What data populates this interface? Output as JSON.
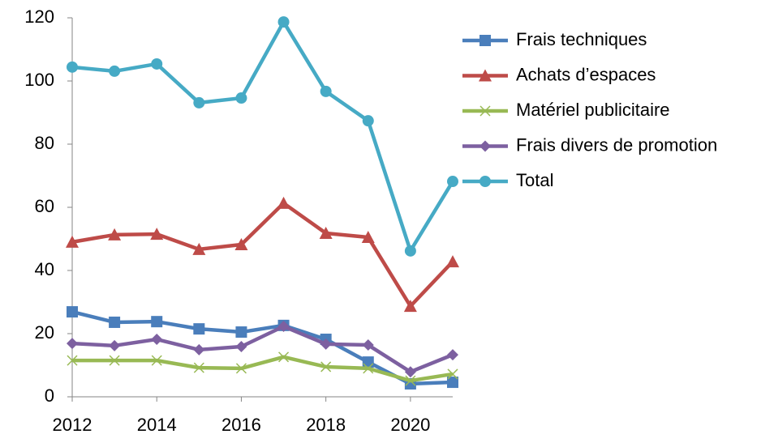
{
  "chart_data": {
    "type": "line",
    "x": [
      2012,
      2013,
      2014,
      2015,
      2016,
      2017,
      2018,
      2019,
      2020,
      2021
    ],
    "xlim": [
      2012,
      2021
    ],
    "xticks": [
      2012,
      2014,
      2016,
      2018,
      2020
    ],
    "ylim": [
      0,
      120
    ],
    "yticks": [
      0,
      20,
      40,
      60,
      80,
      100,
      120
    ],
    "legend": "right",
    "series": [
      {
        "name": "Frais techniques",
        "color": "#4a7ebb",
        "marker": "square",
        "values": [
          26.9,
          23.6,
          23.8,
          21.5,
          20.5,
          22.6,
          18.2,
          11,
          4.1,
          4.6
        ]
      },
      {
        "name": "Achats d’espaces",
        "color": "#be4b48",
        "marker": "triangle",
        "values": [
          49,
          51.3,
          51.5,
          46.7,
          48.2,
          61.3,
          51.8,
          50.5,
          28.7,
          42.8
        ]
      },
      {
        "name": "Matériel publicitaire",
        "color": "#98b954",
        "marker": "x",
        "values": [
          11.5,
          11.5,
          11.5,
          9.2,
          9,
          12.6,
          9.5,
          9,
          5.1,
          7.2
        ]
      },
      {
        "name": "Frais divers de promotion",
        "color": "#7d60a0",
        "marker": "diamond",
        "values": [
          16.9,
          16.2,
          18.2,
          14.9,
          15.9,
          22.3,
          16.7,
          16.4,
          7.9,
          13.3
        ]
      },
      {
        "name": "Total",
        "color": "#46aac5",
        "marker": "circle",
        "values": [
          104.4,
          103.1,
          105.4,
          93.1,
          94.6,
          118.7,
          96.7,
          87.4,
          46.2,
          68.2
        ]
      }
    ]
  }
}
